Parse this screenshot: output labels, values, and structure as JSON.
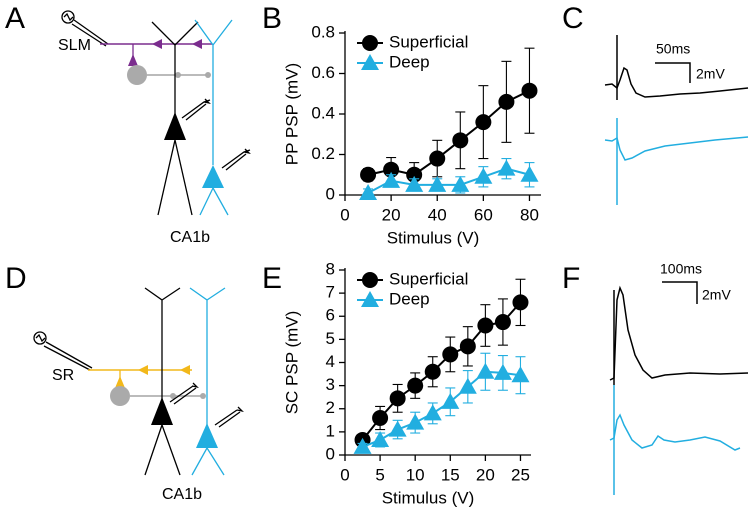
{
  "panel_labels": [
    "A",
    "B",
    "C",
    "D",
    "E",
    "F"
  ],
  "diagrams": [
    {
      "layer": "SLM",
      "region": "CA1b"
    },
    {
      "layer": "SR",
      "region": "CA1b"
    }
  ],
  "scale_bars": [
    {
      "time": "50ms",
      "voltage": "2mV"
    },
    {
      "time": "100ms",
      "voltage": "2mV"
    }
  ],
  "chart_data": [
    {
      "type": "line",
      "xlabel": "Stimulus (V)",
      "ylabel": "PP PSP (mV)",
      "xlim": [
        0,
        85
      ],
      "xticks": [
        0,
        20,
        40,
        60,
        80
      ],
      "ylim": [
        0,
        0.8
      ],
      "yticks": [
        0,
        0.2,
        0.4,
        0.6,
        0.8
      ],
      "grid": false,
      "legend": "upper left",
      "x": [
        10,
        20,
        30,
        40,
        50,
        60,
        70,
        80
      ],
      "series": [
        {
          "name": "Superficial",
          "color": "#000000",
          "marker": "circle",
          "values": [
            0.1,
            0.125,
            0.1,
            0.18,
            0.27,
            0.36,
            0.46,
            0.515
          ],
          "errors": [
            0.03,
            0.06,
            0.06,
            0.09,
            0.14,
            0.18,
            0.2,
            0.21
          ]
        },
        {
          "name": "Deep",
          "color": "#22aee0",
          "marker": "triangle",
          "values": [
            0.01,
            0.07,
            0.05,
            0.05,
            0.05,
            0.09,
            0.13,
            0.1
          ],
          "errors": [
            0.02,
            0.03,
            0.03,
            0.03,
            0.04,
            0.05,
            0.05,
            0.06
          ]
        }
      ]
    },
    {
      "type": "line",
      "xlabel": "Stimulus (V)",
      "ylabel": "SC PSP (mV)",
      "xlim": [
        0,
        26.5
      ],
      "xticks": [
        0,
        5,
        10,
        15,
        20,
        25
      ],
      "ylim": [
        0,
        8
      ],
      "yticks": [
        0,
        1,
        2,
        3,
        4,
        5,
        6,
        7,
        8
      ],
      "grid": false,
      "legend": "upper left",
      "x": [
        2.5,
        5,
        7.5,
        10,
        12.5,
        15,
        17.5,
        20,
        22.5,
        25
      ],
      "series": [
        {
          "name": "Superficial",
          "color": "#000000",
          "marker": "circle",
          "values": [
            0.65,
            1.6,
            2.45,
            3.0,
            3.6,
            4.35,
            4.7,
            5.6,
            5.75,
            6.6
          ],
          "errors": [
            0.2,
            0.5,
            0.6,
            0.55,
            0.65,
            0.75,
            0.85,
            0.9,
            1.0,
            1.0
          ]
        },
        {
          "name": "Deep",
          "color": "#22aee0",
          "marker": "triangle",
          "values": [
            0.35,
            0.65,
            1.1,
            1.4,
            1.8,
            2.3,
            2.95,
            3.6,
            3.55,
            3.45
          ],
          "errors": [
            0.15,
            0.3,
            0.4,
            0.45,
            0.45,
            0.6,
            0.7,
            0.8,
            0.75,
            0.8
          ]
        }
      ]
    }
  ]
}
